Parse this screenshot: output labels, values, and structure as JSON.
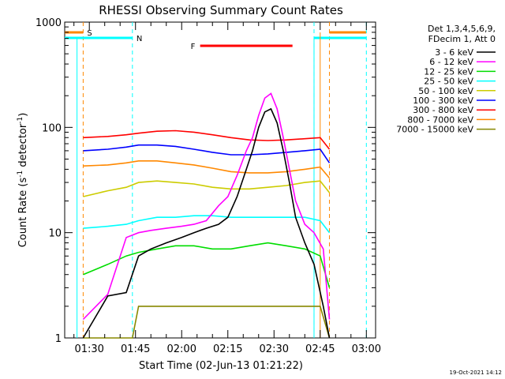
{
  "chart_data": {
    "type": "line",
    "title": "RHESSI Observing Summary Count Rates",
    "xlabel": "Start Time (02-Jun-13 01:21:22)",
    "ylabel_main": "Count Rate (s",
    "ylabel_sup1": "-1",
    "ylabel_mid": " detector",
    "ylabel_sup2": "-1",
    "ylabel_end": ")",
    "yscale": "log",
    "ylim": [
      1,
      1000
    ],
    "xlim_minutes": [
      82,
      183
    ],
    "x_tick_labels": [
      "01:30",
      "01:45",
      "02:00",
      "02:15",
      "02:30",
      "02:45",
      "03:00"
    ],
    "x_tick_minutes": [
      90,
      105,
      120,
      135,
      150,
      165,
      180
    ],
    "y_tick_labels": [
      "1",
      "10",
      "100",
      "1000"
    ],
    "y_tick_values": [
      1,
      10,
      100,
      1000
    ],
    "legend_position": "right",
    "legend_header": [
      "Det 1,3,4,5,6,9,",
      "FDecim 1, Att 0"
    ],
    "series": [
      {
        "name": "3 - 6 keV",
        "color": "#000000",
        "x": [
          88,
          96,
          102,
          106,
          110,
          115,
          120,
          124,
          128,
          132,
          135,
          138,
          141,
          143,
          145,
          147,
          149,
          151,
          153,
          155,
          157,
          160,
          163,
          166,
          168
        ],
        "y": [
          1,
          2.5,
          2.7,
          6,
          7,
          8,
          9,
          10,
          11,
          12,
          14,
          22,
          40,
          60,
          100,
          140,
          150,
          110,
          60,
          30,
          14,
          8,
          5,
          2,
          1
        ]
      },
      {
        "name": "6 - 12 keV",
        "color": "#ff00ff",
        "x": [
          88,
          96,
          102,
          106,
          110,
          115,
          120,
          124,
          128,
          132,
          135,
          138,
          141,
          143,
          145,
          147,
          149,
          151,
          153,
          155,
          157,
          160,
          163,
          166,
          168
        ],
        "y": [
          1.5,
          2.6,
          9,
          10,
          10.5,
          11,
          11.5,
          12,
          13,
          18,
          22,
          35,
          60,
          80,
          130,
          190,
          210,
          150,
          80,
          40,
          20,
          12,
          10,
          7,
          1.5
        ]
      },
      {
        "name": "12 - 25 keV",
        "color": "#00dd00",
        "x": [
          88,
          96,
          102,
          106,
          112,
          118,
          124,
          130,
          136,
          142,
          148,
          154,
          160,
          165,
          168
        ],
        "y": [
          4,
          5,
          6,
          6.5,
          7,
          7.5,
          7.5,
          7,
          7,
          7.5,
          8,
          7.5,
          7,
          6,
          3
        ]
      },
      {
        "name": "25 - 50 keV",
        "color": "#00ffff",
        "x": [
          88,
          96,
          102,
          106,
          112,
          118,
          124,
          130,
          136,
          142,
          148,
          154,
          160,
          165,
          168
        ],
        "y": [
          11,
          11.5,
          12,
          13,
          14,
          14,
          14.5,
          14.5,
          14,
          14,
          14,
          14,
          14,
          13,
          10
        ]
      },
      {
        "name": "50 - 100 keV",
        "color": "#cccc00",
        "x": [
          88,
          96,
          102,
          106,
          112,
          118,
          124,
          130,
          136,
          142,
          148,
          154,
          160,
          165,
          168
        ],
        "y": [
          22,
          25,
          27,
          30,
          31,
          30,
          29,
          27,
          26,
          26,
          27,
          28,
          30,
          31,
          24
        ]
      },
      {
        "name": "100 - 300 keV",
        "color": "#0000ff",
        "x": [
          88,
          96,
          102,
          106,
          112,
          118,
          124,
          130,
          136,
          142,
          148,
          154,
          160,
          165,
          168
        ],
        "y": [
          60,
          62,
          65,
          68,
          68,
          66,
          62,
          58,
          55,
          55,
          56,
          58,
          60,
          62,
          46
        ]
      },
      {
        "name": "300 - 800 keV",
        "color": "#ff0000",
        "x": [
          88,
          96,
          102,
          106,
          112,
          118,
          124,
          130,
          136,
          142,
          148,
          154,
          160,
          165,
          168
        ],
        "y": [
          80,
          82,
          85,
          88,
          92,
          93,
          90,
          85,
          80,
          76,
          75,
          76,
          78,
          80,
          62
        ]
      },
      {
        "name": "800 - 7000 keV",
        "color": "#ff8800",
        "x": [
          88,
          96,
          102,
          106,
          112,
          118,
          124,
          130,
          136,
          142,
          148,
          154,
          160,
          165,
          168
        ],
        "y": [
          43,
          44,
          46,
          48,
          48,
          46,
          44,
          41,
          38,
          37,
          37,
          38,
          40,
          42,
          33
        ]
      },
      {
        "name": "7000 - 15000 keV",
        "color": "#888800",
        "x": [
          88,
          100,
          104,
          106,
          110,
          115,
          120,
          125,
          130,
          135,
          140,
          145,
          150,
          155,
          160,
          165,
          168
        ],
        "y": [
          1,
          1,
          1,
          2,
          2,
          2,
          2,
          2,
          2,
          2,
          2,
          2,
          2,
          2,
          2,
          2,
          1
        ]
      }
    ],
    "annotations": [
      {
        "label": "S",
        "color": "#ff8800",
        "x_minutes": 88
      },
      {
        "label": "N",
        "color": "#00ffff",
        "x_minutes": 104
      },
      {
        "label": "F",
        "color": "#ff0000",
        "x_start_minutes": 126,
        "x_end_minutes": 156
      }
    ],
    "footer_timestamp": "19-Oct-2021 14:12"
  }
}
